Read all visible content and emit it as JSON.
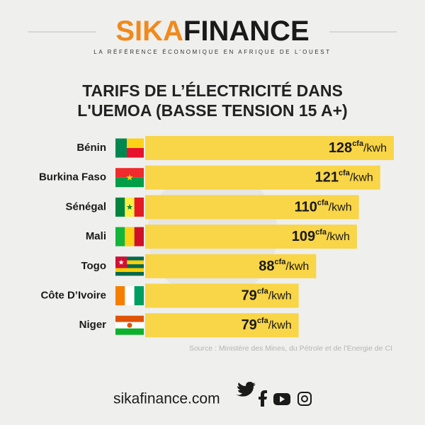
{
  "header": {
    "brand_a": "SIKA",
    "brand_b": "FINANCE",
    "tagline": "LA RÉFÉRENCE ÉCONOMIQUE EN AFRIQUE DE L'OUEST"
  },
  "chart_data": {
    "type": "hbar",
    "title_lines": [
      "TARIFS DE L’ÉLECTRICITÉ DANS",
      "L'UEMOA (BASSE TENSION 15 A+)"
    ],
    "categories": [
      "Bénin",
      "Burkina Faso",
      "Sénégal",
      "Mali",
      "Togo",
      "Côte D’Ivoire",
      "Niger"
    ],
    "values": [
      128,
      121,
      110,
      109,
      88,
      79,
      79
    ],
    "value_unit": "cfa",
    "value_suffix": "/kwh",
    "color": "#f9d548",
    "source": "Source : Ministère des Mines, du Pétrole et de l’Energie de CI"
  },
  "footer": {
    "site": "sikafinance.com"
  }
}
